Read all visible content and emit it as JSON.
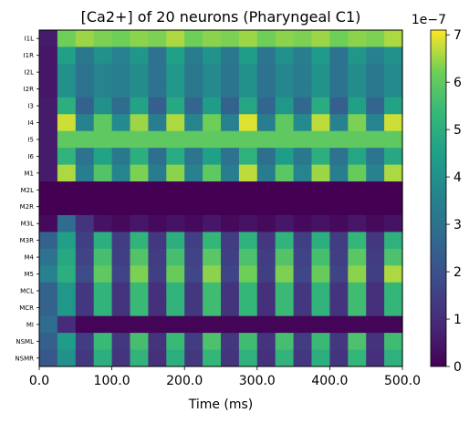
{
  "chart_data": {
    "type": "heatmap",
    "title": "[Ca2+] of 20 neurons (Pharyngeal C1)",
    "xlabel": "Time (ms)",
    "ylabel": "",
    "xlim": [
      0,
      500
    ],
    "x_ticks": [
      "0.0",
      "100.0",
      "200.0",
      "300.0",
      "400.0",
      "500.0"
    ],
    "x_tick_values": [
      0,
      100,
      200,
      300,
      400,
      500
    ],
    "rows": [
      "I1L",
      "I1R",
      "I2L",
      "I2R",
      "I3",
      "I4",
      "I5",
      "I6",
      "M1",
      "M2L",
      "M2R",
      "M3L",
      "M3R",
      "M4",
      "M5",
      "MCL",
      "MCR",
      "MI",
      "NSML",
      "NSMR"
    ],
    "colormap": "viridis",
    "colorbar": {
      "min": 0,
      "max": 7.1,
      "ticks": [
        "0",
        "1",
        "2",
        "3",
        "4",
        "5",
        "6",
        "7"
      ],
      "tick_values": [
        0,
        1,
        2,
        3,
        4,
        5,
        6,
        7
      ],
      "exponent_label": "1e−7"
    },
    "approximate_values_units_1e-7": {
      "I1L": [
        0.6,
        6.2,
        6.5,
        6.3,
        6.2,
        6.4,
        6.3,
        6.6,
        6.2,
        6.4,
        6.3,
        6.5,
        6.2,
        6.4,
        6.3,
        6.5,
        6.2,
        6.4,
        6.3,
        6.6
      ],
      "I1R": [
        0.5,
        4.5,
        3.2,
        4.0,
        3.5,
        4.2,
        3.0,
        4.5,
        3.3,
        4.1,
        3.2,
        4.4,
        3.1,
        4.0,
        3.4,
        4.3,
        3.0,
        4.2,
        3.5,
        4.0
      ],
      "I2L": [
        0.5,
        4.0,
        3.0,
        3.6,
        3.4,
        3.9,
        3.0,
        4.2,
        3.2,
        3.8,
        3.1,
        4.0,
        3.0,
        3.7,
        3.3,
        4.1,
        3.0,
        3.9,
        3.2,
        3.8
      ],
      "I2R": [
        0.5,
        4.0,
        3.0,
        3.6,
        3.4,
        3.9,
        3.0,
        4.2,
        3.2,
        3.8,
        3.1,
        4.0,
        3.0,
        3.7,
        3.3,
        4.1,
        3.0,
        3.9,
        3.2,
        3.8
      ],
      "I3": [
        0.6,
        5.0,
        2.5,
        4.0,
        2.8,
        4.6,
        2.4,
        4.8,
        2.6,
        4.4,
        2.5,
        4.7,
        2.6,
        4.2,
        2.7,
        4.9,
        2.4,
        4.5,
        2.6,
        4.6
      ],
      "I4": [
        0.6,
        6.8,
        3.5,
        6.0,
        3.8,
        6.5,
        3.4,
        6.6,
        3.6,
        6.2,
        3.5,
        6.9,
        3.4,
        6.0,
        3.8,
        6.7,
        3.5,
        6.3,
        3.6,
        6.8
      ],
      "I5": [
        0.6,
        6.0,
        6.0,
        6.0,
        6.0,
        6.0,
        6.0,
        6.0,
        6.0,
        6.0,
        6.0,
        6.0,
        6.0,
        6.0,
        6.0,
        6.0,
        6.0,
        6.0,
        6.0,
        6.0
      ],
      "I6": [
        0.6,
        5.2,
        3.0,
        4.6,
        3.2,
        5.0,
        2.9,
        4.9,
        3.1,
        4.5,
        3.0,
        5.1,
        2.9,
        4.4,
        3.2,
        5.0,
        3.0,
        4.7,
        3.1,
        4.8
      ],
      "M1": [
        0.6,
        6.6,
        3.4,
        5.8,
        3.6,
        6.3,
        3.3,
        6.4,
        3.5,
        6.0,
        3.4,
        6.7,
        3.3,
        5.9,
        3.6,
        6.5,
        3.4,
        6.1,
        3.5,
        6.6
      ],
      "M2L": [
        0.0,
        0.0,
        0.0,
        0.0,
        0.0,
        0.0,
        0.0,
        0.0,
        0.0,
        0.0,
        0.0,
        0.0,
        0.0,
        0.0,
        0.0,
        0.0,
        0.0,
        0.0,
        0.0,
        0.0
      ],
      "M2R": [
        0.0,
        0.0,
        0.0,
        0.0,
        0.0,
        0.0,
        0.0,
        0.0,
        0.0,
        0.0,
        0.0,
        0.0,
        0.0,
        0.0,
        0.0,
        0.0,
        0.0,
        0.0,
        0.0,
        0.0
      ],
      "M3L": [
        0.2,
        2.8,
        1.2,
        0.4,
        0.2,
        0.5,
        0.2,
        0.4,
        0.2,
        0.5,
        0.2,
        0.4,
        0.2,
        0.5,
        0.2,
        0.4,
        0.2,
        0.5,
        0.2,
        0.4
      ],
      "M3R": [
        2.5,
        4.5,
        1.5,
        5.0,
        1.4,
        5.2,
        1.3,
        5.0,
        1.5,
        5.3,
        1.4,
        5.1,
        1.3,
        5.2,
        1.5,
        5.0,
        1.4,
        5.3,
        1.3,
        5.1
      ],
      "M4": [
        3.0,
        4.8,
        1.6,
        5.6,
        1.5,
        5.8,
        1.4,
        5.6,
        1.6,
        5.9,
        1.5,
        5.7,
        1.4,
        5.8,
        1.6,
        5.6,
        1.5,
        5.9,
        1.4,
        5.7
      ],
      "M5": [
        3.5,
        5.0,
        1.8,
        6.0,
        1.6,
        6.3,
        1.5,
        6.1,
        1.7,
        6.4,
        1.6,
        6.2,
        1.5,
        6.3,
        1.7,
        6.1,
        1.6,
        6.4,
        1.5,
        6.6
      ],
      "MCL": [
        2.5,
        4.2,
        1.3,
        5.2,
        1.2,
        5.4,
        1.1,
        5.2,
        1.3,
        5.5,
        1.2,
        5.3,
        1.1,
        5.4,
        1.3,
        5.2,
        1.2,
        5.5,
        1.1,
        5.3
      ],
      "MCR": [
        2.5,
        4.2,
        1.3,
        5.2,
        1.2,
        5.4,
        1.1,
        5.2,
        1.3,
        5.5,
        1.2,
        5.3,
        1.1,
        5.4,
        1.3,
        5.2,
        1.2,
        5.5,
        1.1,
        5.3
      ],
      "MI": [
        2.8,
        1.0,
        0.1,
        0.1,
        0.1,
        0.1,
        0.1,
        0.1,
        0.1,
        0.1,
        0.1,
        0.1,
        0.1,
        0.1,
        0.1,
        0.1,
        0.1,
        0.1,
        0.1,
        0.1
      ],
      "NSML": [
        2.4,
        4.4,
        1.4,
        5.4,
        1.3,
        5.6,
        1.2,
        5.4,
        1.4,
        5.7,
        1.3,
        5.5,
        1.2,
        5.6,
        1.4,
        5.4,
        1.3,
        5.7,
        1.2,
        5.5
      ],
      "NSMR": [
        2.2,
        4.0,
        1.3,
        5.0,
        1.2,
        5.2,
        1.1,
        5.0,
        1.3,
        5.3,
        1.2,
        5.1,
        1.1,
        5.2,
        1.3,
        5.0,
        1.2,
        5.3,
        1.1,
        5.1
      ]
    }
  }
}
